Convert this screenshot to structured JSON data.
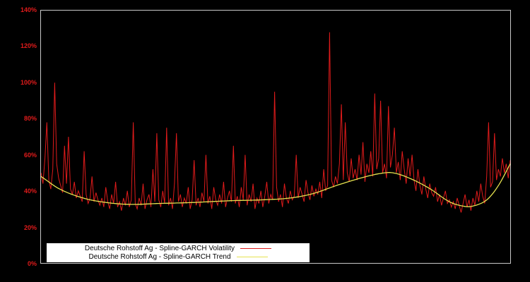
{
  "page": {
    "background": "#000000",
    "plot_border_color": "#c8c8c8"
  },
  "chart_data": {
    "type": "line",
    "title": "",
    "xlabel": "",
    "ylabel": "",
    "ylim": [
      0,
      140
    ],
    "y_tick_step": 20,
    "y_tick_suffix": "%",
    "y_tick_color": "#e01b1b",
    "grid": false,
    "legend_position": "bottom-left",
    "legend_background": "#ffffff",
    "series": [
      {
        "name": "Deutsche Rohstoff Ag - Spline-GARCH Volatility",
        "color": "#e01b1b",
        "style": "jagged",
        "values": [
          50,
          44,
          58,
          78,
          46,
          41,
          52,
          100,
          55,
          47,
          43,
          39,
          65,
          44,
          70,
          41,
          38,
          45,
          36,
          40,
          37,
          34,
          62,
          38,
          33,
          36,
          48,
          34,
          39,
          35,
          32,
          36,
          31,
          42,
          34,
          30,
          38,
          33,
          45,
          31,
          34,
          29,
          36,
          32,
          40,
          31,
          35,
          78,
          33,
          30,
          36,
          32,
          44,
          30,
          35,
          38,
          31,
          52,
          34,
          72,
          35,
          31,
          40,
          33,
          75,
          32,
          36,
          30,
          44,
          72,
          34,
          38,
          31,
          36,
          33,
          42,
          30,
          35,
          57,
          32,
          36,
          31,
          39,
          34,
          60,
          33,
          37,
          30,
          42,
          35,
          32,
          38,
          33,
          45,
          31,
          36,
          40,
          34,
          65,
          33,
          37,
          31,
          42,
          35,
          60,
          32,
          38,
          34,
          44,
          30,
          36,
          33,
          40,
          31,
          37,
          45,
          33,
          38,
          35,
          95,
          42,
          34,
          38,
          31,
          44,
          36,
          33,
          40,
          35,
          37,
          60,
          36,
          42,
          38,
          34,
          46,
          39,
          35,
          43,
          37,
          41,
          38,
          45,
          36,
          52,
          40,
          43,
          128,
          46,
          42,
          48,
          44,
          55,
          88,
          46,
          78,
          50,
          45,
          58,
          47,
          52,
          46,
          60,
          49,
          67,
          45,
          55,
          50,
          62,
          48,
          94,
          52,
          58,
          90,
          50,
          55,
          47,
          87,
          53,
          60,
          75,
          50,
          56,
          46,
          62,
          52,
          44,
          58,
          48,
          60,
          46,
          40,
          52,
          43,
          38,
          48,
          41,
          36,
          44,
          39,
          37,
          42,
          34,
          38,
          32,
          36,
          40,
          33,
          35,
          31,
          34,
          30,
          36,
          32,
          28,
          33,
          38,
          31,
          35,
          29,
          36,
          32,
          40,
          34,
          44,
          37,
          33,
          48,
          78,
          42,
          45,
          72,
          46,
          52,
          48,
          58,
          50,
          55,
          47,
          57
        ]
      },
      {
        "name": "Deutsche Rohstoff Ag - Spline-GARCH Trend",
        "color": "#e6e24f",
        "style": "spline",
        "control_points": [
          [
            0,
            48
          ],
          [
            0.04,
            41
          ],
          [
            0.09,
            36
          ],
          [
            0.14,
            33.5
          ],
          [
            0.19,
            32.5
          ],
          [
            0.25,
            33
          ],
          [
            0.32,
            33.5
          ],
          [
            0.4,
            34.5
          ],
          [
            0.47,
            35
          ],
          [
            0.53,
            36
          ],
          [
            0.58,
            38.5
          ],
          [
            0.63,
            43
          ],
          [
            0.68,
            47
          ],
          [
            0.72,
            49.5
          ],
          [
            0.75,
            50
          ],
          [
            0.79,
            46.5
          ],
          [
            0.83,
            41
          ],
          [
            0.87,
            34
          ],
          [
            0.9,
            31.5
          ],
          [
            0.92,
            31.5
          ],
          [
            0.95,
            35
          ],
          [
            0.975,
            43
          ],
          [
            1,
            55
          ]
        ]
      }
    ]
  }
}
